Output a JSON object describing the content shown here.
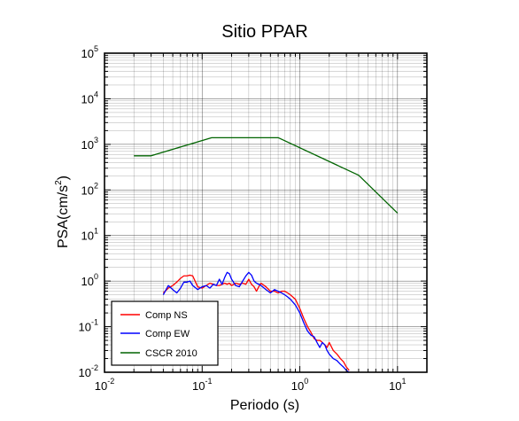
{
  "chart_data": {
    "type": "line",
    "title": "Sitio PPAR",
    "xlabel": "Periodo (s)",
    "ylabel_main": "PSA(cm/s",
    "ylabel_sup": "2",
    "ylabel_close": ")",
    "x_scale": "log",
    "y_scale": "log",
    "xlim": [
      0.01,
      20
    ],
    "ylim": [
      0.01,
      100000
    ],
    "grid": true,
    "legend_placement": "bottom-left",
    "x_ticks": [
      {
        "base": "10",
        "exp": "-2",
        "value": 0.01
      },
      {
        "base": "10",
        "exp": "-1",
        "value": 0.1
      },
      {
        "base": "10",
        "exp": "0",
        "value": 1
      },
      {
        "base": "10",
        "exp": "1",
        "value": 10
      }
    ],
    "y_ticks": [
      {
        "base": "10",
        "exp": "-2",
        "value": 0.01
      },
      {
        "base": "10",
        "exp": "-1",
        "value": 0.1
      },
      {
        "base": "10",
        "exp": "0",
        "value": 1
      },
      {
        "base": "10",
        "exp": "1",
        "value": 10
      },
      {
        "base": "10",
        "exp": "2",
        "value": 100
      },
      {
        "base": "10",
        "exp": "3",
        "value": 1000
      },
      {
        "base": "10",
        "exp": "4",
        "value": 10000
      },
      {
        "base": "10",
        "exp": "5",
        "value": 100000
      }
    ],
    "series": [
      {
        "name": "Comp NS",
        "color": "#ff0000",
        "x": [
          0.04,
          0.045,
          0.05,
          0.055,
          0.06,
          0.065,
          0.07,
          0.075,
          0.08,
          0.09,
          0.1,
          0.11,
          0.12,
          0.13,
          0.14,
          0.15,
          0.16,
          0.17,
          0.18,
          0.19,
          0.2,
          0.22,
          0.24,
          0.26,
          0.28,
          0.3,
          0.32,
          0.34,
          0.36,
          0.38,
          0.4,
          0.45,
          0.5,
          0.55,
          0.6,
          0.65,
          0.7,
          0.75,
          0.8,
          0.9,
          1.0,
          1.1,
          1.2,
          1.3,
          1.4,
          1.5,
          1.6,
          1.7,
          1.8,
          1.9,
          2.0,
          2.2,
          2.4,
          2.6,
          2.8,
          3.0,
          3.2
        ],
        "values": [
          0.55,
          0.7,
          0.8,
          0.95,
          1.15,
          1.3,
          1.3,
          1.35,
          1.3,
          0.75,
          0.7,
          0.8,
          0.9,
          0.85,
          0.8,
          0.8,
          0.85,
          0.9,
          0.85,
          0.9,
          0.8,
          0.9,
          0.85,
          0.9,
          0.85,
          1.1,
          0.85,
          0.75,
          0.6,
          0.75,
          0.9,
          0.75,
          0.6,
          0.6,
          0.55,
          0.6,
          0.6,
          0.55,
          0.5,
          0.4,
          0.25,
          0.15,
          0.1,
          0.075,
          0.055,
          0.05,
          0.05,
          0.045,
          0.04,
          0.035,
          0.045,
          0.03,
          0.025,
          0.02,
          0.017,
          0.013,
          0.011
        ]
      },
      {
        "name": "Comp EW",
        "color": "#0000ff",
        "x": [
          0.04,
          0.045,
          0.05,
          0.055,
          0.06,
          0.065,
          0.07,
          0.075,
          0.08,
          0.09,
          0.1,
          0.11,
          0.12,
          0.13,
          0.14,
          0.15,
          0.16,
          0.17,
          0.18,
          0.19,
          0.2,
          0.22,
          0.24,
          0.26,
          0.28,
          0.3,
          0.32,
          0.34,
          0.36,
          0.38,
          0.4,
          0.45,
          0.5,
          0.55,
          0.6,
          0.65,
          0.7,
          0.75,
          0.8,
          0.9,
          1.0,
          1.1,
          1.2,
          1.3,
          1.4,
          1.5,
          1.6,
          1.7,
          1.8,
          1.9,
          2.0,
          2.2,
          2.4,
          2.6,
          2.8,
          3.0,
          3.2
        ],
        "values": [
          0.5,
          0.8,
          0.65,
          0.55,
          0.7,
          0.95,
          0.95,
          1.0,
          0.8,
          0.65,
          0.75,
          0.8,
          0.7,
          0.85,
          0.8,
          1.1,
          0.85,
          1.2,
          1.55,
          1.45,
          1.1,
          0.8,
          0.75,
          1.0,
          1.3,
          1.55,
          1.35,
          1.0,
          0.9,
          0.85,
          0.8,
          0.65,
          0.55,
          0.65,
          0.6,
          0.55,
          0.5,
          0.45,
          0.4,
          0.3,
          0.2,
          0.12,
          0.08,
          0.065,
          0.06,
          0.045,
          0.035,
          0.045,
          0.04,
          0.03,
          0.025,
          0.02,
          0.018,
          0.015,
          0.013,
          0.011,
          0.01
        ]
      },
      {
        "name": "CSCR 2010",
        "color": "#006400",
        "x": [
          0.02,
          0.03,
          0.125,
          0.6,
          4.0,
          10.0
        ],
        "values": [
          560,
          560,
          1400,
          1400,
          210,
          31
        ]
      }
    ]
  }
}
